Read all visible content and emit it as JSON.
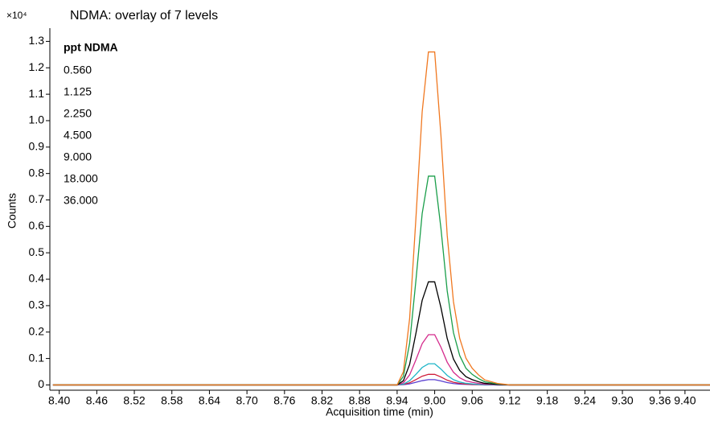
{
  "chart_data": {
    "type": "line",
    "title": "NDMA: overlay of 7 levels",
    "y_multiplier": "×10⁴",
    "x_label": "Acquisition time (min)",
    "y_label": "Counts",
    "legend_title": "ppt NDMA",
    "legend_position": "upper-left",
    "x": [
      8.39,
      8.5,
      8.6,
      8.7,
      8.8,
      8.9,
      8.94,
      8.95,
      8.96,
      8.97,
      8.98,
      8.99,
      9.0,
      9.01,
      9.02,
      9.03,
      9.04,
      9.05,
      9.06,
      9.07,
      9.08,
      9.1,
      9.12,
      9.2,
      9.3,
      9.44
    ],
    "series": [
      {
        "name": "0.560",
        "color": "#5a3fd0",
        "values": [
          0,
          0,
          0,
          0,
          0,
          0,
          0,
          0.001,
          0.004,
          0.01,
          0.016,
          0.02,
          0.02,
          0.015,
          0.009,
          0.005,
          0.003,
          0.002,
          0.001,
          0.001,
          0,
          0,
          0,
          0,
          0,
          0
        ]
      },
      {
        "name": "1.125",
        "color": "#d0203c",
        "values": [
          0,
          0,
          0,
          0,
          0,
          0,
          0,
          0.002,
          0.008,
          0.02,
          0.033,
          0.04,
          0.04,
          0.03,
          0.018,
          0.01,
          0.006,
          0.003,
          0.002,
          0.001,
          0.001,
          0,
          0,
          0,
          0,
          0
        ]
      },
      {
        "name": "2.250",
        "color": "#1fb5c8",
        "values": [
          0,
          0,
          0,
          0,
          0,
          0,
          0,
          0.003,
          0.016,
          0.04,
          0.066,
          0.08,
          0.08,
          0.06,
          0.036,
          0.02,
          0.011,
          0.006,
          0.004,
          0.002,
          0.001,
          0,
          0,
          0,
          0,
          0
        ]
      },
      {
        "name": "4.500",
        "color": "#d42a8c",
        "values": [
          0,
          0,
          0,
          0,
          0,
          0,
          0,
          0.008,
          0.038,
          0.095,
          0.156,
          0.19,
          0.19,
          0.143,
          0.086,
          0.048,
          0.027,
          0.015,
          0.01,
          0.006,
          0.003,
          0.001,
          0,
          0,
          0,
          0
        ]
      },
      {
        "name": "9.000",
        "color": "#000000",
        "values": [
          0,
          0,
          0,
          0,
          0,
          0,
          0,
          0.016,
          0.078,
          0.195,
          0.32,
          0.39,
          0.39,
          0.293,
          0.176,
          0.098,
          0.055,
          0.031,
          0.02,
          0.012,
          0.006,
          0.002,
          0,
          0,
          0,
          0
        ]
      },
      {
        "name": "18.000",
        "color": "#1a9e4a",
        "values": [
          0,
          0,
          0,
          0,
          0,
          0,
          0,
          0.032,
          0.158,
          0.395,
          0.648,
          0.79,
          0.79,
          0.593,
          0.356,
          0.198,
          0.111,
          0.063,
          0.04,
          0.024,
          0.012,
          0.004,
          0,
          0,
          0,
          0
        ]
      },
      {
        "name": "36.000",
        "color": "#f07820",
        "values": [
          0,
          0,
          0,
          0,
          0,
          0,
          0,
          0.05,
          0.252,
          0.63,
          1.033,
          1.26,
          1.26,
          0.945,
          0.567,
          0.315,
          0.176,
          0.101,
          0.063,
          0.038,
          0.019,
          0.006,
          0,
          0,
          0,
          0
        ]
      }
    ],
    "xlim": [
      8.385,
      9.44
    ],
    "ylim": [
      -0.02,
      1.35
    ],
    "xticks": [
      {
        "value": 8.4,
        "label": "8.40"
      },
      8.46,
      8.52,
      8.58,
      8.64,
      {
        "value": 8.7,
        "label": "8.70"
      },
      8.76,
      8.82,
      8.88,
      8.94,
      {
        "value": 9.0,
        "label": "9.00"
      },
      9.06,
      9.12,
      9.18,
      9.24,
      {
        "value": 9.3,
        "label": "9.30"
      },
      9.36,
      {
        "value": 9.4,
        "label": "9.40"
      }
    ],
    "yticks": [
      0,
      0.1,
      0.2,
      0.3,
      0.4,
      0.5,
      0.6,
      0.7,
      0.8,
      0.9,
      {
        "value": 1,
        "label": "1.0"
      },
      1.1,
      1.2,
      1.3
    ],
    "grid": false
  }
}
